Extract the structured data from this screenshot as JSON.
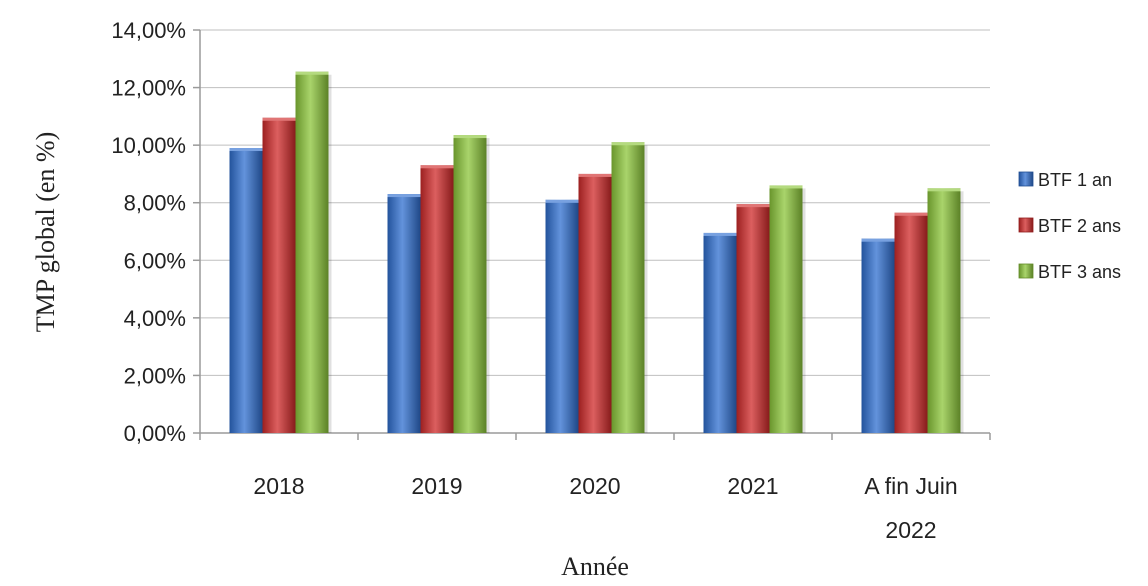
{
  "chart_data": {
    "type": "bar",
    "title": "",
    "xlabel": "Année",
    "ylabel": "TMP global (en %)",
    "ylim": [
      0,
      14
    ],
    "y_ticks": [
      0,
      2,
      4,
      6,
      8,
      10,
      12,
      14
    ],
    "y_tick_labels": [
      "0,00%",
      "2,00%",
      "4,00%",
      "6,00%",
      "8,00%",
      "10,00%",
      "12,00%",
      "14,00%"
    ],
    "categories": [
      "2018",
      "2019",
      "2020",
      "2021",
      "A fin Juin 2022"
    ],
    "category_lines": [
      [
        "2018"
      ],
      [
        "2019"
      ],
      [
        "2020"
      ],
      [
        "2021"
      ],
      [
        "A fin Juin",
        "2022"
      ]
    ],
    "grid": true,
    "legend_position": "right",
    "series": [
      {
        "name": "BTF 1 an",
        "color": "#2f6fd0",
        "values": [
          9.9,
          8.3,
          8.1,
          6.95,
          6.75
        ]
      },
      {
        "name": "BTF 2 ans",
        "color": "#d02a2a",
        "values": [
          10.95,
          9.3,
          9.0,
          7.95,
          7.65
        ]
      },
      {
        "name": "BTF 3 ans",
        "color": "#8cc63a",
        "values": [
          12.55,
          10.35,
          10.1,
          8.6,
          8.5
        ]
      }
    ]
  }
}
